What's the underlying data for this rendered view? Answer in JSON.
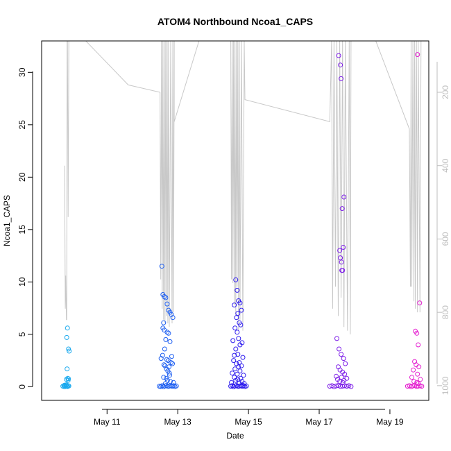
{
  "chart_data": {
    "type": "scatter",
    "title": "ATOM4 Northbound Ncoa1_CAPS",
    "xlabel": "Date",
    "ylabel": "Ncoa1_CAPS",
    "x_ticks": [
      {
        "day": 11,
        "label": "May 11"
      },
      {
        "day": 13,
        "label": "May 13"
      },
      {
        "day": 15,
        "label": "May 15"
      },
      {
        "day": 17,
        "label": "May 17"
      },
      {
        "day": 19,
        "label": "May 19"
      }
    ],
    "xlim_days": [
      9.15,
      20.1
    ],
    "ylim": [
      -1.3,
      33.0
    ],
    "y_ticks": [
      0,
      5,
      10,
      15,
      20,
      25,
      30
    ],
    "y2_label": "",
    "y2_ticks": [
      200,
      400,
      600,
      800,
      1000
    ],
    "y2lim_reversed": [
      1040,
      60
    ],
    "grid": false,
    "color_scale": [
      "#1aa7ec",
      "#1565f0",
      "#2b10ee",
      "#7a1ae6",
      "#e01fd0"
    ],
    "series": [
      {
        "color": "#19a9ee",
        "x": [
          9.75,
          9.78,
          9.8,
          9.82,
          9.84,
          9.86,
          9.88,
          9.9,
          9.92,
          9.8,
          9.85,
          9.9,
          9.88,
          9.86,
          9.91,
          9.93,
          9.87,
          9.89,
          9.85,
          9.91
        ],
        "y": [
          0.05,
          0.1,
          0.0,
          0.08,
          0.12,
          0.05,
          0.02,
          0.1,
          0.07,
          0.15,
          0.18,
          0.6,
          5.6,
          4.7,
          3.6,
          3.4,
          1.7,
          0.8,
          0.7,
          0.75
        ]
      },
      {
        "color": "#1e5ff1",
        "x": [
          12.48,
          12.52,
          12.56,
          12.6,
          12.64,
          12.68,
          12.72,
          12.76,
          12.8,
          12.84,
          12.88,
          12.92,
          12.96,
          12.55,
          12.58,
          12.62,
          12.66,
          12.7,
          12.74,
          12.78,
          12.82,
          12.86,
          12.6,
          12.58,
          12.62,
          12.7,
          12.74,
          12.66,
          12.78,
          12.63,
          12.57,
          12.69,
          12.73,
          12.81,
          12.85,
          12.64,
          12.68,
          12.72,
          12.76,
          12.6,
          12.67,
          12.71,
          12.79,
          12.53,
          12.61,
          12.75,
          12.83,
          12.88,
          12.65,
          12.77
        ],
        "y": [
          0.05,
          0.02,
          0.1,
          0.0,
          0.08,
          0.12,
          0.03,
          0.06,
          0.09,
          0.05,
          0.1,
          0.02,
          0.07,
          11.5,
          8.8,
          8.6,
          8.5,
          7.9,
          7.3,
          7.1,
          6.9,
          6.6,
          6.1,
          5.6,
          5.4,
          5.2,
          5.1,
          4.5,
          4.3,
          3.6,
          3.0,
          2.6,
          2.5,
          2.3,
          2.2,
          2.0,
          1.7,
          1.5,
          1.3,
          0.9,
          0.8,
          0.6,
          0.5,
          2.7,
          2.1,
          1.9,
          2.9,
          0.4,
          0.3,
          1.1
        ]
      },
      {
        "color": "#2c1aee",
        "x": [
          14.5,
          14.54,
          14.58,
          14.62,
          14.66,
          14.7,
          14.74,
          14.78,
          14.82,
          14.86,
          14.9,
          14.94,
          14.64,
          14.68,
          14.72,
          14.76,
          14.6,
          14.8,
          14.7,
          14.66,
          14.74,
          14.78,
          14.62,
          14.68,
          14.72,
          14.56,
          14.82,
          14.76,
          14.64,
          14.7,
          14.6,
          14.84,
          14.58,
          14.74,
          14.66,
          14.8,
          14.72,
          14.62,
          14.76,
          14.54,
          14.68,
          14.86,
          14.6,
          14.78,
          14.7,
          14.64,
          14.82,
          14.52,
          14.74,
          14.88
        ],
        "y": [
          0.05,
          0.1,
          0.0,
          0.08,
          0.12,
          0.03,
          0.06,
          0.09,
          0.05,
          0.1,
          0.02,
          0.07,
          10.2,
          9.2,
          8.2,
          8.0,
          7.8,
          7.3,
          7.0,
          6.6,
          6.1,
          5.9,
          5.6,
          5.2,
          4.6,
          4.4,
          4.2,
          4.0,
          3.6,
          3.1,
          3.0,
          2.8,
          2.5,
          2.3,
          2.2,
          2.0,
          1.9,
          1.7,
          1.5,
          1.3,
          1.2,
          1.1,
          0.9,
          0.8,
          0.7,
          0.6,
          0.5,
          0.4,
          0.35,
          0.3
        ]
      },
      {
        "color": "#7d1ee8",
        "x": [
          17.3,
          17.36,
          17.42,
          17.48,
          17.54,
          17.6,
          17.66,
          17.72,
          17.78,
          17.84,
          17.9,
          17.55,
          17.6,
          17.62,
          17.7,
          17.65,
          17.68,
          17.58,
          17.6,
          17.63,
          17.66,
          17.64,
          17.5,
          17.56,
          17.62,
          17.69,
          17.74,
          17.54,
          17.59,
          17.66,
          17.72,
          17.48,
          17.63,
          17.78,
          17.52,
          17.7,
          17.58,
          17.67
        ],
        "y": [
          0.05,
          0.1,
          0.0,
          0.08,
          0.12,
          0.03,
          0.06,
          0.09,
          0.05,
          0.1,
          0.02,
          31.6,
          30.7,
          29.4,
          18.1,
          17.0,
          13.3,
          13.0,
          12.3,
          11.9,
          11.1,
          11.1,
          4.6,
          3.6,
          3.1,
          2.7,
          2.2,
          1.9,
          1.6,
          1.4,
          1.2,
          1.0,
          0.9,
          0.8,
          0.7,
          0.6,
          0.5,
          0.4
        ]
      },
      {
        "color": "#e41dcf",
        "x": [
          19.5,
          19.55,
          19.6,
          19.65,
          19.7,
          19.75,
          19.8,
          19.85,
          19.9,
          19.78,
          19.84,
          19.72,
          19.76,
          19.8,
          19.7,
          19.74,
          19.82,
          19.66,
          19.78,
          19.62,
          19.86,
          19.68,
          19.76,
          19.8
        ],
        "y": [
          0.05,
          0.1,
          0.0,
          0.08,
          0.12,
          0.03,
          0.06,
          0.09,
          0.05,
          31.7,
          8.0,
          5.3,
          5.1,
          4.0,
          2.4,
          2.1,
          1.9,
          1.6,
          1.2,
          0.9,
          0.7,
          0.5,
          0.4,
          0.3
        ]
      }
    ],
    "depth_trace": {
      "color": "#c8c8c8",
      "x": [
        9.8,
        9.82,
        9.83,
        9.85,
        9.86,
        9.87,
        9.88,
        9.9,
        9.92,
        9.93,
        10.4,
        11.6,
        12.5,
        12.52,
        12.54,
        12.56,
        12.58,
        12.6,
        12.62,
        12.64,
        12.66,
        12.68,
        12.7,
        12.72,
        12.74,
        12.76,
        12.8,
        12.84,
        12.86,
        12.88,
        12.9,
        12.9,
        13.6,
        14.5,
        14.52,
        14.54,
        14.56,
        14.58,
        14.6,
        14.62,
        14.64,
        14.66,
        14.68,
        14.7,
        14.72,
        14.74,
        14.76,
        14.8,
        14.84,
        14.88,
        14.9,
        17.3,
        17.35,
        17.38,
        17.42,
        17.46,
        17.5,
        17.54,
        17.58,
        17.62,
        17.66,
        17.7,
        17.74,
        17.8,
        17.85,
        17.88,
        17.9,
        18.6,
        19.55,
        19.58,
        19.6,
        19.62,
        19.65,
        19.68,
        19.7,
        19.72,
        19.75,
        19.78,
        19.8,
        19.85,
        19.88,
        19.92
      ],
      "y": [
        400,
        790,
        700,
        820,
        820,
        60,
        60,
        540,
        60,
        60,
        60,
        180,
        200,
        710,
        60,
        790,
        60,
        820,
        60,
        830,
        60,
        810,
        60,
        830,
        60,
        840,
        60,
        830,
        60,
        800,
        60,
        280,
        60,
        60,
        710,
        60,
        720,
        60,
        780,
        60,
        810,
        60,
        730,
        60,
        850,
        60,
        820,
        60,
        850,
        60,
        220,
        280,
        60,
        790,
        60,
        730,
        60,
        810,
        60,
        760,
        60,
        840,
        60,
        850,
        60,
        860,
        60,
        60,
        300,
        730,
        60,
        730,
        60,
        770,
        60,
        790,
        60,
        800,
        60,
        800,
        60,
        60
      ]
    }
  }
}
